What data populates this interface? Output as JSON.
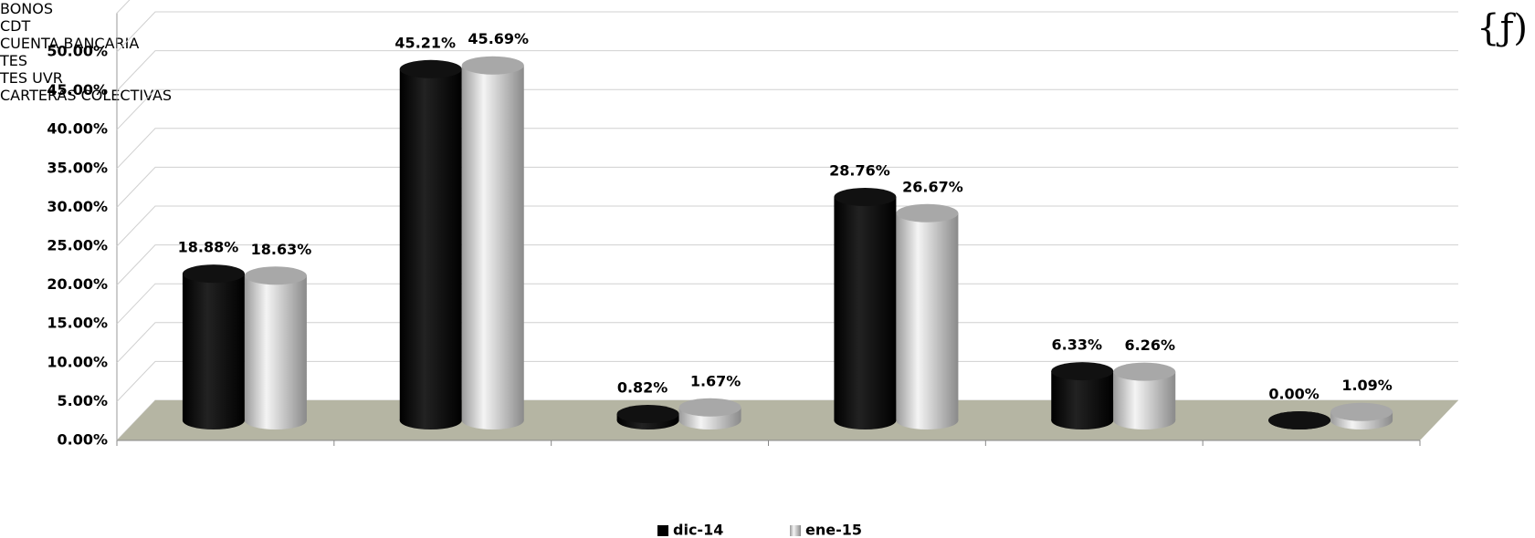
{
  "chart_data": {
    "type": "bar3d",
    "corner_mark": "{ƒ)",
    "categories": [
      "BONOS",
      "CDT",
      "CUENTA BANCARIA",
      "TES",
      "TES UVR",
      "CARTERAS\nCOLECTIVAS"
    ],
    "series": [
      {
        "name": "dic-14",
        "color": "#000000",
        "values": [
          18.88,
          45.21,
          0.82,
          28.76,
          6.33,
          0.0
        ],
        "value_labels": [
          "18.88%",
          "45.21%",
          "0.82%",
          "28.76%",
          "6.33%",
          "0.00%"
        ]
      },
      {
        "name": "ene-15",
        "color": "#c8c8c8",
        "values": [
          18.63,
          45.69,
          1.67,
          26.67,
          6.26,
          1.09
        ],
        "value_labels": [
          "18.63%",
          "45.69%",
          "1.67%",
          "26.67%",
          "6.26%",
          "1.09%"
        ]
      }
    ],
    "ylim": [
      0,
      55
    ],
    "yticks": [
      {
        "value": 0,
        "label": "0.00%"
      },
      {
        "value": 5,
        "label": "5.00%"
      },
      {
        "value": 10,
        "label": "10.00%"
      },
      {
        "value": 15,
        "label": "15.00%"
      },
      {
        "value": 20,
        "label": "20.00%"
      },
      {
        "value": 25,
        "label": "25.00%"
      },
      {
        "value": 30,
        "label": "30.00%"
      },
      {
        "value": 35,
        "label": "35.00%"
      },
      {
        "value": 40,
        "label": "40.00%"
      },
      {
        "value": 45,
        "label": "45.00%"
      },
      {
        "value": 50,
        "label": "50.00%"
      }
    ],
    "grid": true,
    "floor_color": "#b5b5a3",
    "legend": "bottom"
  }
}
